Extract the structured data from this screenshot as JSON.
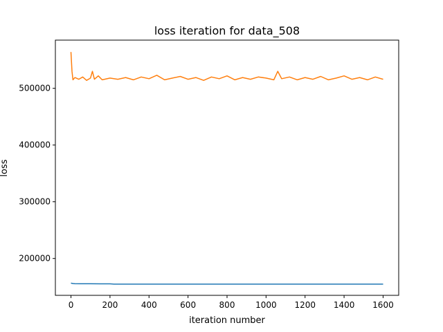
{
  "chart_data": {
    "type": "line",
    "title": "loss iteration for data_508",
    "xlabel": "iteration number",
    "ylabel": "loss",
    "xlim": [
      -80,
      1680
    ],
    "ylim": [
      135000,
      585000
    ],
    "xticks": [
      0,
      200,
      400,
      600,
      800,
      1000,
      1200,
      1400,
      1600
    ],
    "yticks": [
      200000,
      300000,
      400000,
      500000
    ],
    "grid": false,
    "legend": "none",
    "series": [
      {
        "color": "#ff7f0e",
        "x": [
          0,
          5,
          10,
          20,
          40,
          60,
          80,
          100,
          110,
          120,
          140,
          160,
          200,
          240,
          280,
          320,
          360,
          400,
          440,
          480,
          520,
          560,
          600,
          640,
          680,
          720,
          760,
          800,
          840,
          880,
          920,
          960,
          1000,
          1040,
          1060,
          1080,
          1120,
          1160,
          1200,
          1240,
          1280,
          1320,
          1360,
          1400,
          1440,
          1480,
          1520,
          1560,
          1600
        ],
        "values": [
          564000,
          530000,
          515000,
          519000,
          516000,
          520000,
          514000,
          518000,
          530000,
          516000,
          522000,
          515000,
          518000,
          516000,
          519000,
          515000,
          520000,
          517000,
          523000,
          515000,
          518000,
          521000,
          516000,
          519000,
          514000,
          520000,
          517000,
          522000,
          515000,
          519000,
          516000,
          520000,
          518000,
          515000,
          530000,
          517000,
          520000,
          515000,
          519000,
          516000,
          521000,
          515000,
          518000,
          522000,
          516000,
          519000,
          515000,
          520000,
          516000
        ]
      },
      {
        "color": "#1f77b4",
        "x": [
          0,
          10,
          20,
          50,
          100,
          150,
          200,
          220,
          300,
          400,
          600,
          800,
          1000,
          1200,
          1400,
          1600
        ],
        "values": [
          156500,
          155800,
          155600,
          155500,
          155400,
          155300,
          155200,
          154900,
          154800,
          154800,
          154700,
          154700,
          154700,
          154700,
          154700,
          154700
        ]
      }
    ]
  }
}
